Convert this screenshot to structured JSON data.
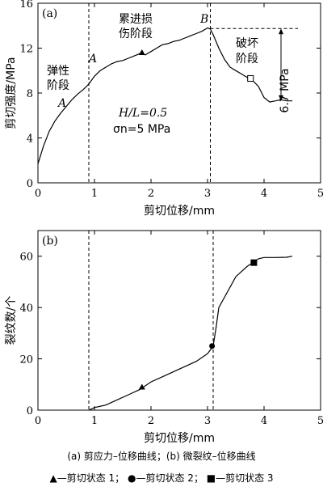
{
  "chart_data": [
    {
      "type": "line",
      "panel_label": "(a)",
      "xlabel": "剪切位移/mm",
      "ylabel": "剪切强度/MPa",
      "xlim": [
        0,
        5
      ],
      "ylim": [
        0,
        16
      ],
      "xticks": [
        0,
        1,
        2,
        3,
        4,
        5
      ],
      "yticks": [
        0,
        4,
        8,
        12,
        16
      ],
      "series": [
        {
          "x": [
            0,
            0.1,
            0.2,
            0.3,
            0.4,
            0.5,
            0.6,
            0.7,
            0.8,
            0.9,
            1.0,
            1.1,
            1.2,
            1.3,
            1.4,
            1.5,
            1.6,
            1.7,
            1.8,
            1.9,
            2.0,
            2.1,
            2.2,
            2.3,
            2.4,
            2.5,
            2.6,
            2.7,
            2.8,
            2.9,
            3.0,
            3.05,
            3.1,
            3.2,
            3.3,
            3.4,
            3.5,
            3.6,
            3.7,
            3.8,
            3.9,
            4.0,
            4.1,
            4.2,
            4.3,
            4.4,
            4.5
          ],
          "y": [
            1.7,
            3.3,
            4.6,
            5.5,
            6.2,
            6.8,
            7.4,
            7.9,
            8.3,
            8.8,
            9.5,
            10.0,
            10.3,
            10.6,
            10.8,
            10.9,
            11.1,
            11.3,
            11.5,
            11.4,
            11.7,
            12.0,
            12.3,
            12.4,
            12.6,
            12.7,
            12.9,
            13.1,
            13.3,
            13.5,
            13.8,
            13.7,
            13.2,
            12.0,
            11.0,
            10.3,
            10.0,
            9.7,
            9.4,
            9.1,
            8.6,
            7.6,
            7.2,
            7.3,
            7.4,
            7.3,
            7.3
          ]
        }
      ],
      "markers": [
        {
          "shape": "triangle",
          "x": 1.84,
          "y": 11.6
        },
        {
          "shape": "square",
          "x": 3.76,
          "y": 9.3
        }
      ],
      "dashed_verticals": [
        0.9,
        3.05
      ],
      "peak_line_y": 13.75,
      "annotations": {
        "elastic_stage": "弹性\n阶段",
        "damage_stage": "累进损\n伤阶段",
        "failure_stage": "破坏\n阶段",
        "point_a_upper": "A",
        "point_a_lower": "A",
        "point_b": "B",
        "drop": "6.7 MPa",
        "ratio": "H/L=0.5",
        "normal_stress": "σn=5 MPa"
      }
    },
    {
      "type": "line",
      "panel_label": "(b)",
      "xlabel": "剪切位移/mm",
      "ylabel": "裂纹数/个",
      "xlim": [
        0,
        5
      ],
      "ylim": [
        0,
        70
      ],
      "xticks": [
        0,
        1,
        2,
        3,
        4,
        5
      ],
      "yticks": [
        0,
        20,
        40,
        60
      ],
      "series": [
        {
          "x": [
            0.9,
            1.0,
            1.2,
            1.4,
            1.6,
            1.8,
            2.0,
            2.2,
            2.4,
            2.6,
            2.8,
            2.9,
            3.0,
            3.05,
            3.1,
            3.15,
            3.2,
            3.3,
            3.4,
            3.5,
            3.6,
            3.7,
            3.8,
            3.9,
            4.0,
            4.2,
            4.4,
            4.5
          ],
          "y": [
            0,
            1,
            2,
            4,
            6,
            8,
            11,
            13,
            15,
            17,
            19,
            20.5,
            22,
            23.5,
            25,
            32,
            40,
            44,
            48,
            52,
            54,
            56,
            57.5,
            59,
            59.5,
            59.5,
            59.6,
            60
          ]
        }
      ],
      "markers": [
        {
          "shape": "triangle",
          "x": 1.84,
          "y": 9
        },
        {
          "shape": "circle",
          "x": 3.08,
          "y": 25
        },
        {
          "shape": "square",
          "x": 3.82,
          "y": 57.5
        }
      ],
      "dashed_verticals": [
        0.9,
        3.1
      ]
    }
  ],
  "caption": "(a)  剪应力–位移曲线；(b)  微裂纹–位移曲线",
  "legend": {
    "triangle_label": "—剪切状态 1；",
    "circle_label": "—剪切状态 2；",
    "square_label": "—剪切状态 3"
  }
}
